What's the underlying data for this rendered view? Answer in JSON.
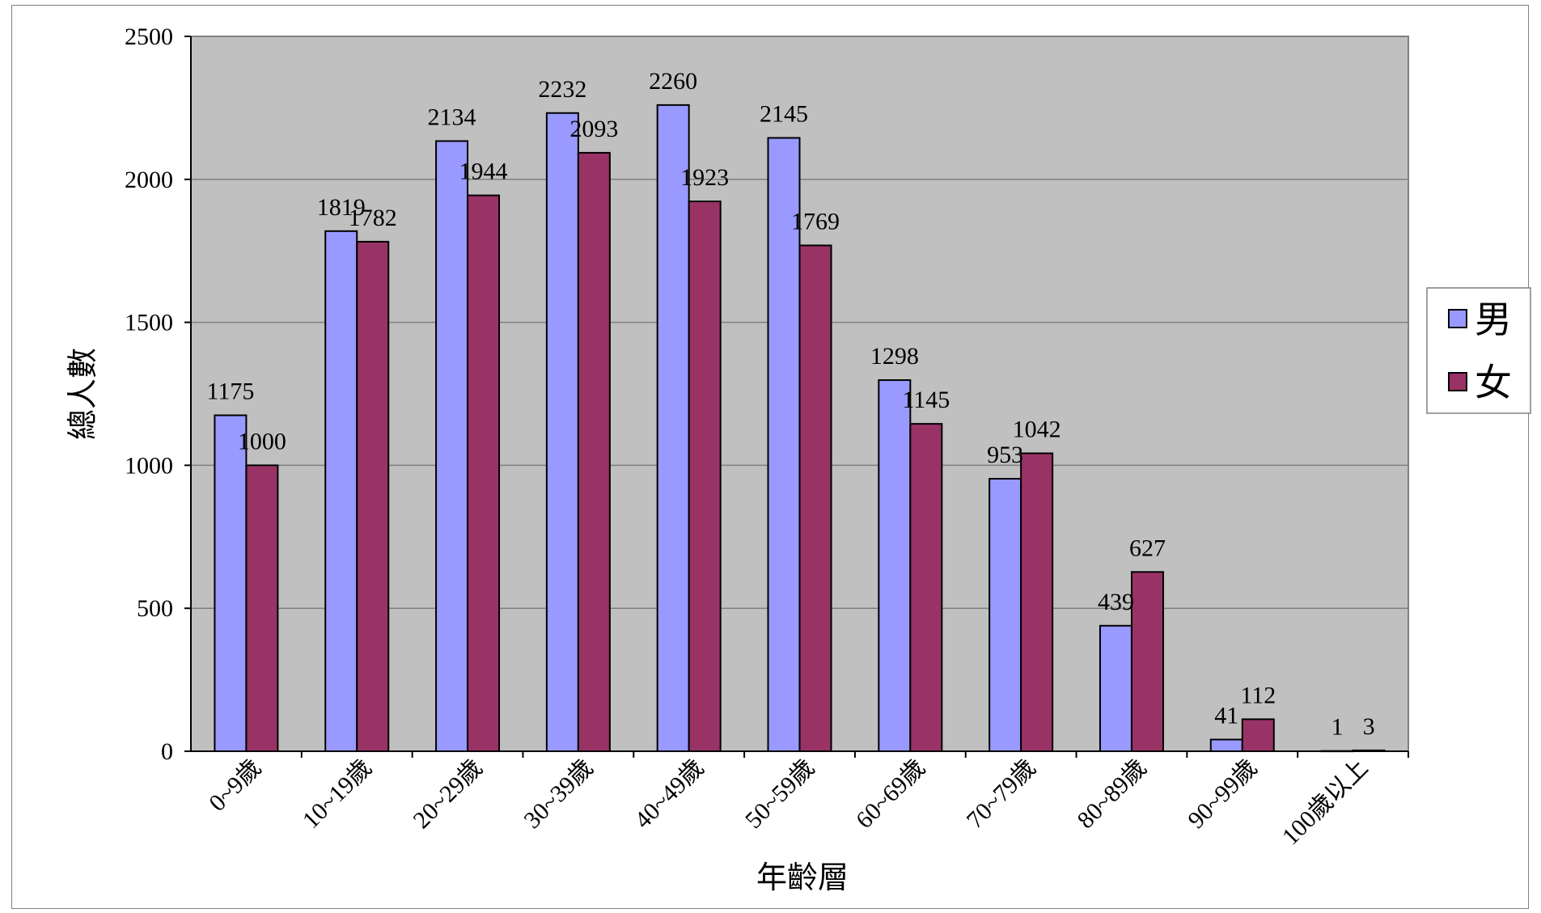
{
  "chart_data": {
    "type": "bar",
    "title": "",
    "xlabel": "年齡層",
    "ylabel": "總人數",
    "ylim": [
      0,
      2500
    ],
    "yticks": [
      0,
      500,
      1000,
      1500,
      2000,
      2500
    ],
    "grid": true,
    "legend_position": "right",
    "categories": [
      "0~9歲",
      "10~19歲",
      "20~29歲",
      "30~39歲",
      "40~49歲",
      "50~59歲",
      "60~69歲",
      "70~79歲",
      "80~89歲",
      "90~99歲",
      "100歲以上"
    ],
    "series": [
      {
        "name": "男",
        "color": "#9999ff",
        "values": [
          1175,
          1819,
          2134,
          2232,
          2260,
          2145,
          1298,
          953,
          439,
          41,
          1
        ]
      },
      {
        "name": "女",
        "color": "#993366",
        "values": [
          1000,
          1782,
          1944,
          2093,
          1923,
          1769,
          1145,
          1042,
          627,
          112,
          3
        ]
      }
    ],
    "plot_background": "#c0c0c0"
  }
}
